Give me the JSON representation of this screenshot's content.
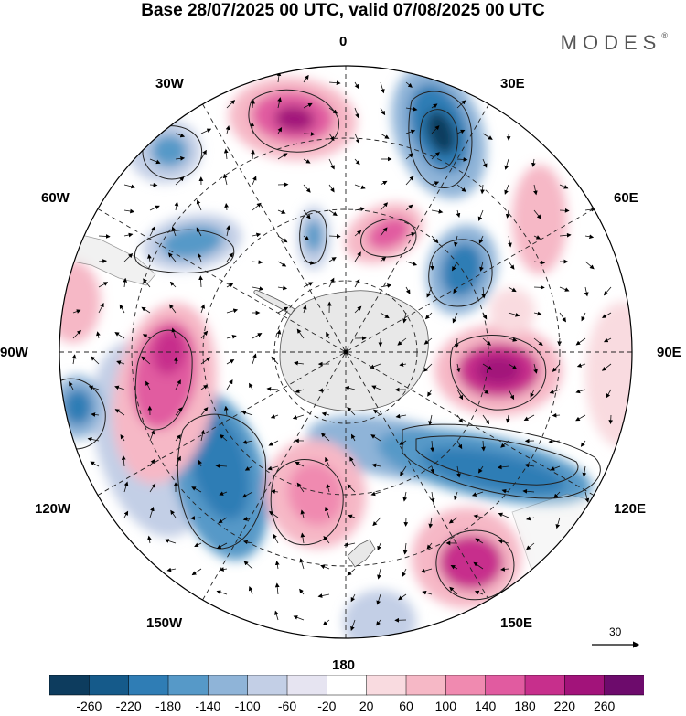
{
  "title": "Base 28/07/2025 00 UTC, valid 07/08/2025 00 UTC",
  "brand": {
    "name": "MODES",
    "mark": "®"
  },
  "map": {
    "projection": "south-polar-stereographic",
    "meridian_labels": {
      "top": "0",
      "top_right": "30E",
      "upper_right": "60E",
      "right": "90E",
      "lower_right": "120E",
      "bottom_right": "150E",
      "bottom": "180",
      "bottom_left": "150W",
      "lower_left": "120W",
      "left": "90W",
      "upper_left": "60W",
      "top_left": "30W"
    },
    "colors": {
      "neg_260": "#0d3c5e",
      "neg_220": "#155a8a",
      "neg_180": "#2f7db5",
      "neg_140": "#5699c8",
      "neg_100": "#8fb4d8",
      "neg_60": "#c3cfe6",
      "neg_20": "#e6e4f1",
      "zero": "#ffffff",
      "pos_20": "#f9dbe0",
      "pos_60": "#f6b8c6",
      "pos_100": "#f08ab0",
      "pos_140": "#e15ba0",
      "pos_180": "#c72f8c",
      "pos_220": "#a2137a",
      "pos_260": "#6d0b6c",
      "land": "#e8e8e8"
    }
  },
  "vector_scale": {
    "label": "30"
  },
  "colorbar": {
    "ticks": [
      "-260",
      "-220",
      "-180",
      "-140",
      "-100",
      "-60",
      "-20",
      "20",
      "60",
      "100",
      "140",
      "180",
      "220",
      "260"
    ],
    "colors": [
      "#0d3c5e",
      "#155a8a",
      "#2f7db5",
      "#5699c8",
      "#8fb4d8",
      "#c3cfe6",
      "#e6e4f1",
      "#ffffff",
      "#f9dbe0",
      "#f6b8c6",
      "#f08ab0",
      "#e15ba0",
      "#c72f8c",
      "#a2137a",
      "#6d0b6c"
    ]
  }
}
